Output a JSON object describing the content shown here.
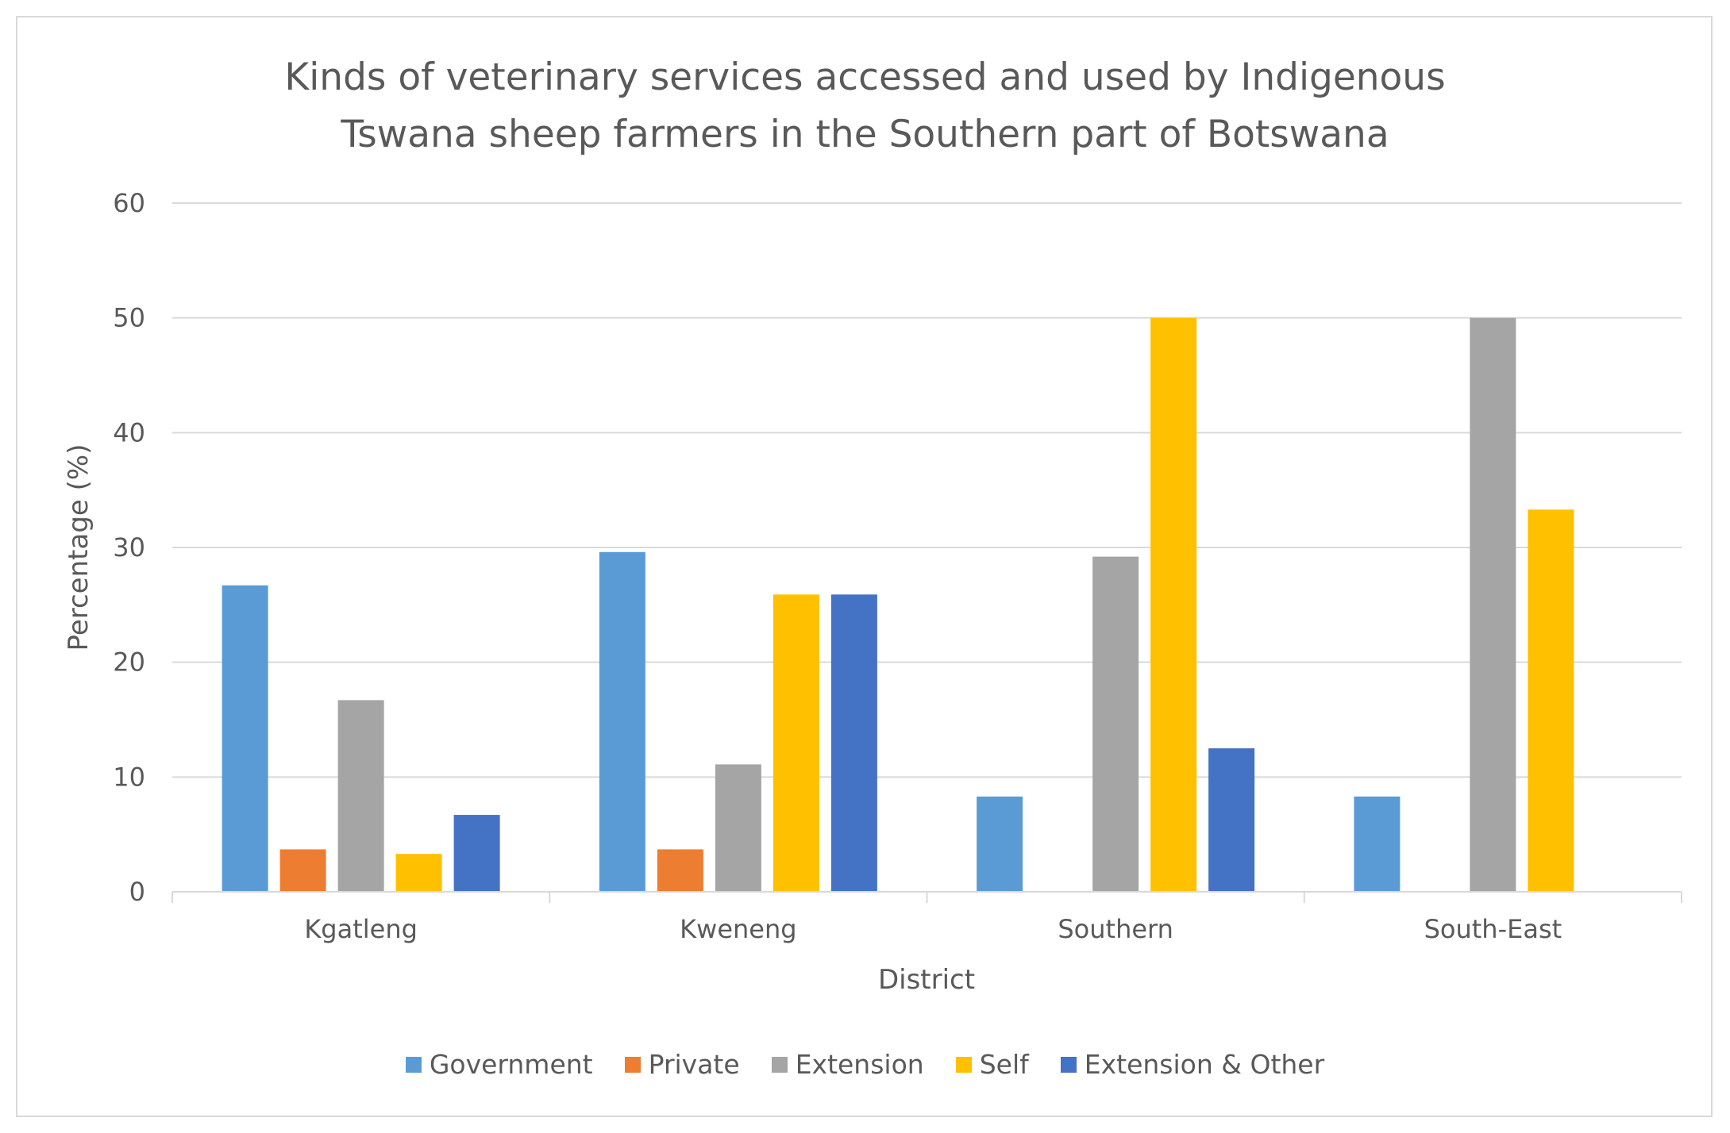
{
  "chart_data": {
    "type": "bar",
    "title_lines": [
      "Kinds of veterinary services accessed  and used by Indigenous",
      "Tswana sheep farmers in the Southern part of Botswana"
    ],
    "xlabel": "District",
    "ylabel": "Percentage (%)",
    "ylim": [
      0,
      60
    ],
    "yticks": [
      0,
      10,
      20,
      30,
      40,
      50,
      60
    ],
    "grid": true,
    "legend_position": "bottom",
    "categories": [
      "Kgatleng",
      "Kweneng",
      "Southern",
      "South-East"
    ],
    "series": [
      {
        "name": "Government",
        "color": "#5b9bd5",
        "values": [
          26.7,
          29.6,
          8.3,
          8.3
        ]
      },
      {
        "name": "Private",
        "color": "#ed7d31",
        "values": [
          3.7,
          3.7,
          0,
          0
        ]
      },
      {
        "name": "Extension",
        "color": "#a5a5a5",
        "values": [
          16.7,
          11.1,
          29.2,
          50
        ]
      },
      {
        "name": "Self",
        "color": "#ffc000",
        "values": [
          3.3,
          25.9,
          50,
          33.3
        ]
      },
      {
        "name": "Extension & Other",
        "color": "#4472c4",
        "values": [
          6.7,
          25.9,
          12.5,
          0
        ]
      }
    ]
  }
}
